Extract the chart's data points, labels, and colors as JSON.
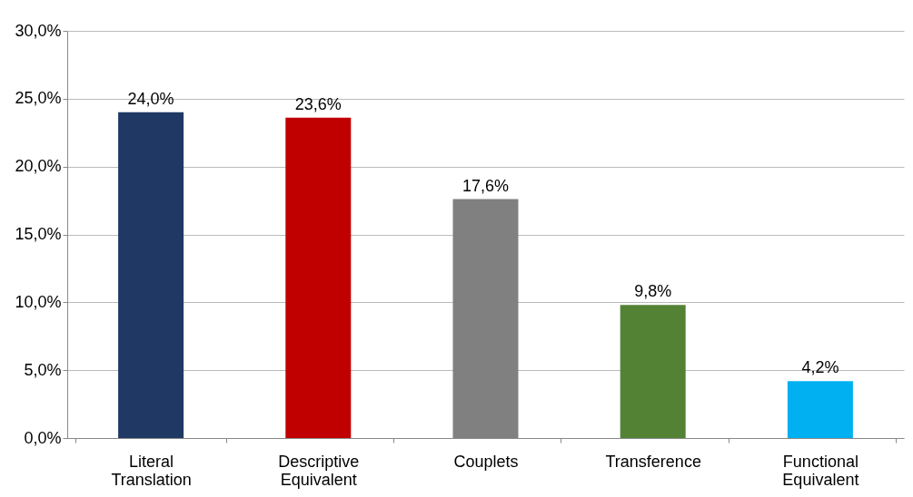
{
  "chart_data": {
    "type": "bar",
    "categories": [
      "Literal Translation",
      "Descriptive Equivalent",
      "Couplets",
      "Transference",
      "Functional Equivalent"
    ],
    "values": [
      24.0,
      23.6,
      17.6,
      9.8,
      4.2
    ],
    "colors": [
      "#1f3864",
      "#c00000",
      "#808080",
      "#548235",
      "#00b0f0"
    ],
    "value_labels": [
      "24,0%",
      "23,6%",
      "17,6%",
      "9,8%",
      "4,2%"
    ],
    "ylim": [
      0,
      30
    ],
    "yticks": [
      {
        "value": 0,
        "label": "0,0%"
      },
      {
        "value": 5,
        "label": "5,0%"
      },
      {
        "value": 10,
        "label": "10,0%"
      },
      {
        "value": 15,
        "label": "15,0%"
      },
      {
        "value": 20,
        "label": "20,0%"
      },
      {
        "value": 25,
        "label": "25,0%"
      },
      {
        "value": 30,
        "label": "30,0%"
      }
    ],
    "grid": "y"
  }
}
